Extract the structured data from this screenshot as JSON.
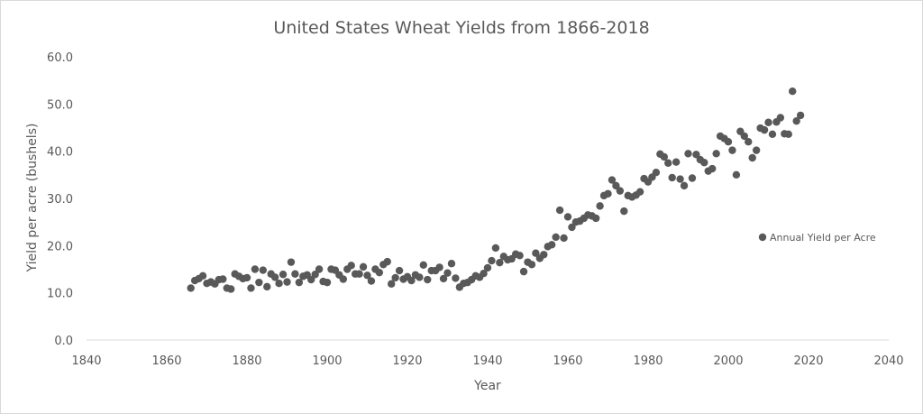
{
  "chart_data": {
    "type": "scatter",
    "title": "United States Wheat Yields from 1866-2018",
    "xlabel": "Year",
    "ylabel": "Yield per acre (bushels)",
    "xlim": [
      1840,
      2040
    ],
    "ylim": [
      0,
      60
    ],
    "xticks": [
      "1840",
      "1860",
      "1880",
      "1900",
      "1920",
      "1940",
      "1960",
      "1980",
      "2000",
      "2020",
      "2040"
    ],
    "yticks": [
      "0.0",
      "10.0",
      "20.0",
      "30.0",
      "40.0",
      "50.0",
      "60.0"
    ],
    "grid": false,
    "legend": "right",
    "marker_color": "#595959",
    "series": [
      {
        "name": "Annual Yield per Acre",
        "x": [
          1866,
          1867,
          1868,
          1869,
          1870,
          1871,
          1872,
          1873,
          1874,
          1875,
          1876,
          1877,
          1878,
          1879,
          1880,
          1881,
          1882,
          1883,
          1884,
          1885,
          1886,
          1887,
          1888,
          1889,
          1890,
          1891,
          1892,
          1893,
          1894,
          1895,
          1896,
          1897,
          1898,
          1899,
          1900,
          1901,
          1902,
          1903,
          1904,
          1905,
          1906,
          1907,
          1908,
          1909,
          1910,
          1911,
          1912,
          1913,
          1914,
          1915,
          1916,
          1917,
          1918,
          1919,
          1920,
          1921,
          1922,
          1923,
          1924,
          1925,
          1926,
          1927,
          1928,
          1929,
          1930,
          1931,
          1932,
          1933,
          1934,
          1935,
          1936,
          1937,
          1938,
          1939,
          1940,
          1941,
          1942,
          1943,
          1944,
          1945,
          1946,
          1947,
          1948,
          1949,
          1950,
          1951,
          1952,
          1953,
          1954,
          1955,
          1956,
          1957,
          1958,
          1959,
          1960,
          1961,
          1962,
          1963,
          1964,
          1965,
          1966,
          1967,
          1968,
          1969,
          1970,
          1971,
          1972,
          1973,
          1974,
          1975,
          1976,
          1977,
          1978,
          1979,
          1980,
          1981,
          1982,
          1983,
          1984,
          1985,
          1986,
          1987,
          1988,
          1989,
          1990,
          1991,
          1992,
          1993,
          1994,
          1995,
          1996,
          1997,
          1998,
          1999,
          2000,
          2001,
          2002,
          2003,
          2004,
          2005,
          2006,
          2007,
          2008,
          2009,
          2010,
          2011,
          2012,
          2013,
          2014,
          2015,
          2016,
          2017,
          2018
        ],
        "y": [
          11.0,
          12.6,
          13.0,
          13.6,
          12.0,
          12.3,
          11.9,
          12.8,
          12.9,
          11.0,
          10.8,
          14.0,
          13.5,
          13.0,
          13.2,
          11.0,
          15.0,
          12.2,
          14.8,
          11.3,
          14.0,
          13.3,
          12.0,
          13.9,
          12.3,
          16.5,
          14.0,
          12.2,
          13.5,
          13.8,
          12.8,
          13.9,
          15.0,
          12.4,
          12.2,
          15.0,
          14.8,
          13.8,
          12.9,
          15.0,
          15.8,
          14.0,
          14.0,
          15.5,
          13.7,
          12.5,
          15.0,
          14.3,
          16.0,
          16.6,
          11.9,
          13.2,
          14.7,
          12.9,
          13.4,
          12.6,
          13.8,
          13.3,
          15.9,
          12.8,
          14.7,
          14.7,
          15.4,
          13.0,
          14.2,
          16.2,
          13.1,
          11.2,
          12.0,
          12.2,
          12.8,
          13.6,
          13.3,
          14.1,
          15.3,
          16.8,
          19.5,
          16.4,
          17.7,
          17.0,
          17.2,
          18.2,
          17.9,
          14.5,
          16.5,
          16.0,
          18.4,
          17.3,
          18.1,
          19.8,
          20.2,
          21.8,
          27.5,
          21.6,
          26.1,
          23.9,
          25.0,
          25.2,
          25.8,
          26.5,
          26.3,
          25.8,
          28.4,
          30.6,
          31.0,
          33.9,
          32.7,
          31.6,
          27.3,
          30.6,
          30.3,
          30.7,
          31.4,
          34.2,
          33.5,
          34.5,
          35.5,
          39.4,
          38.8,
          37.5,
          34.4,
          37.7,
          34.1,
          32.7,
          39.5,
          34.3,
          39.3,
          38.2,
          37.6,
          35.8,
          36.3,
          39.5,
          43.2,
          42.7,
          42.0,
          40.2,
          35.0,
          44.2,
          43.2,
          42.0,
          38.6,
          40.2,
          44.9,
          44.5,
          46.1,
          43.6,
          46.2,
          47.1,
          43.7,
          43.6,
          52.7,
          46.4,
          47.6
        ]
      }
    ]
  }
}
